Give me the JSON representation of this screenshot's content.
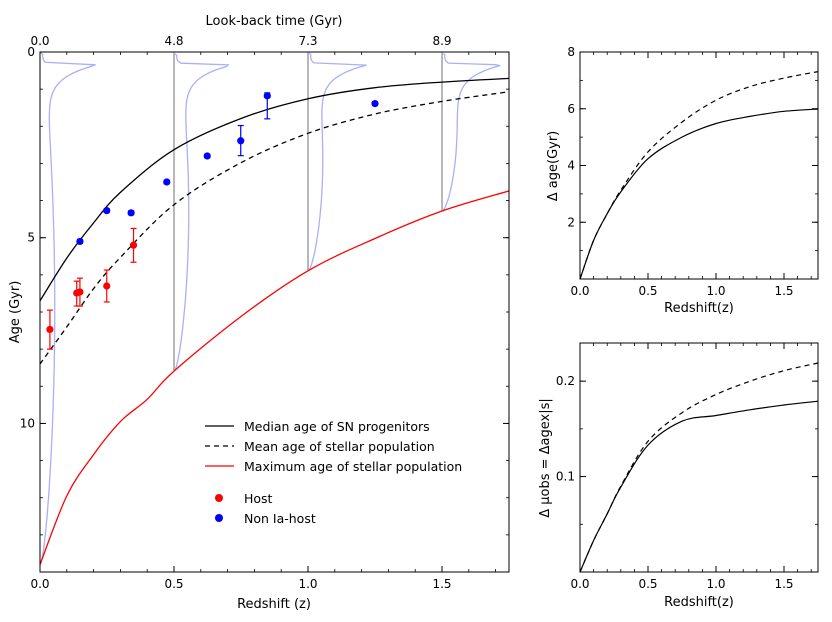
{
  "chart_data": [
    {
      "type": "scatter",
      "xlabel": "Redshift (z)",
      "ylabel": "Age (Gyr)",
      "top_xlabel": "Look-back time (Gyr)",
      "xlim": [
        0,
        1.75
      ],
      "ylim": [
        0,
        14
      ],
      "y_inverted": true,
      "x_ticks": [
        0.0,
        0.5,
        1.0,
        1.5
      ],
      "x_tick_labels": [
        "0.0",
        "0.5",
        "1.0",
        "1.5"
      ],
      "y_ticks": [
        0,
        5,
        10
      ],
      "y_tick_labels": [
        "0",
        "5",
        "10"
      ],
      "top_ticks_z": [
        0.0,
        0.5,
        1.0,
        1.5
      ],
      "top_tick_labels": [
        "0.0",
        "4.8",
        "7.3",
        "8.9"
      ],
      "grid": false,
      "legend_placement": "bottom-right",
      "lines": [
        {
          "name": "Median age of SN progenitors",
          "style": "solid",
          "color": "#000000",
          "x": [
            0,
            0.1,
            0.2,
            0.3,
            0.5,
            0.75,
            1.0,
            1.25,
            1.5,
            1.75
          ],
          "y": [
            6.7,
            5.55,
            4.6,
            3.78,
            2.63,
            1.79,
            1.26,
            0.96,
            0.81,
            0.71
          ]
        },
        {
          "name": "Mean age of stellar population",
          "style": "dashed",
          "color": "#000000",
          "x": [
            0,
            0.1,
            0.2,
            0.3,
            0.5,
            0.75,
            1.0,
            1.25,
            1.5,
            1.75
          ],
          "y": [
            8.4,
            7.4,
            6.37,
            5.53,
            4.11,
            2.98,
            2.19,
            1.67,
            1.33,
            1.07
          ]
        },
        {
          "name": "Maximum age of stellar population",
          "style": "solid",
          "color": "#ff0000",
          "x": [
            0,
            0.1,
            0.2,
            0.3,
            0.4,
            0.5,
            0.75,
            1.0,
            1.25,
            1.5,
            1.75
          ],
          "y": [
            13.8,
            11.95,
            10.84,
            9.95,
            9.35,
            8.59,
            7.12,
            5.89,
            5.02,
            4.28,
            3.74
          ]
        }
      ],
      "series": [
        {
          "name": "Host",
          "color": "#ff0000",
          "points": [
            {
              "x": 0.037,
              "y": 7.47,
              "ylo": 6.95,
              "yhi": 8.0
            },
            {
              "x": 0.137,
              "y": 6.49,
              "ylo": 6.17,
              "yhi": 6.84
            },
            {
              "x": 0.149,
              "y": 6.46,
              "ylo": 6.09,
              "yhi": 6.84
            },
            {
              "x": 0.249,
              "y": 6.3,
              "ylo": 5.87,
              "yhi": 6.73
            },
            {
              "x": 0.349,
              "y": 5.2,
              "ylo": 4.75,
              "yhi": 5.66
            }
          ]
        },
        {
          "name": "Non Ia-host",
          "color": "#0000ff",
          "points": [
            {
              "x": 0.149,
              "y": 5.1,
              "ylo": 5.05,
              "yhi": 5.15
            },
            {
              "x": 0.249,
              "y": 4.27,
              "ylo": 4.22,
              "yhi": 4.32
            },
            {
              "x": 0.34,
              "y": 4.33,
              "ylo": 4.28,
              "yhi": 4.38
            },
            {
              "x": 0.473,
              "y": 3.5,
              "ylo": 3.45,
              "yhi": 3.55
            },
            {
              "x": 0.624,
              "y": 2.8,
              "ylo": 2.75,
              "yhi": 2.85
            },
            {
              "x": 0.749,
              "y": 2.39,
              "ylo": 1.98,
              "yhi": 2.79
            },
            {
              "x": 0.848,
              "y": 1.18,
              "ylo": 1.1,
              "yhi": 1.8
            },
            {
              "x": 1.25,
              "y": 1.39,
              "ylo": 1.34,
              "yhi": 1.44
            }
          ]
        }
      ],
      "age_distributions": [
        {
          "z": 0.0,
          "max_age": 13.8
        },
        {
          "z": 0.5,
          "max_age": 8.59
        },
        {
          "z": 1.0,
          "max_age": 5.89
        },
        {
          "z": 1.5,
          "max_age": 4.28
        }
      ],
      "distribution_color": "#aab0f5",
      "marker_line_color": "#888888"
    },
    {
      "type": "line",
      "xlabel": "Redshift(z)",
      "ylabel": "Δ age(Gyr)",
      "xlim": [
        0,
        1.75
      ],
      "ylim": [
        0,
        8
      ],
      "x_ticks": [
        0.0,
        0.5,
        1.0,
        1.5
      ],
      "x_tick_labels": [
        "0.0",
        "0.5",
        "1.0",
        "1.5"
      ],
      "y_ticks": [
        2,
        4,
        6,
        8
      ],
      "y_tick_labels": [
        "2",
        "4",
        "6",
        "8"
      ],
      "grid": false,
      "lines": [
        {
          "style": "solid",
          "color": "#000000",
          "x": [
            0,
            0.1,
            0.2,
            0.3,
            0.5,
            0.75,
            1.0,
            1.25,
            1.5,
            1.75
          ],
          "y": [
            0,
            1.36,
            2.3,
            3.07,
            4.24,
            5.0,
            5.48,
            5.73,
            5.91,
            5.99
          ]
        },
        {
          "style": "dashed",
          "color": "#000000",
          "x": [
            0,
            0.1,
            0.2,
            0.3,
            0.5,
            0.75,
            1.0,
            1.25,
            1.5,
            1.75
          ],
          "y": [
            0,
            1.36,
            2.3,
            3.13,
            4.48,
            5.53,
            6.3,
            6.78,
            7.08,
            7.31
          ]
        }
      ]
    },
    {
      "type": "line",
      "xlabel": "Redshift(z)",
      "ylabel": "Δ μobs = Δagex|s|",
      "xlim": [
        0,
        1.75
      ],
      "ylim": [
        0,
        0.24
      ],
      "x_ticks": [
        0.0,
        0.5,
        1.0,
        1.5
      ],
      "x_tick_labels": [
        "0.0",
        "0.5",
        "1.0",
        "1.5"
      ],
      "y_ticks": [
        0.1,
        0.2
      ],
      "y_tick_labels": [
        "0.1",
        "0.2"
      ],
      "grid": false,
      "lines": [
        {
          "style": "solid",
          "color": "#000000",
          "x": [
            0,
            0.1,
            0.2,
            0.3,
            0.5,
            0.75,
            1.0,
            1.25,
            1.5,
            1.75
          ],
          "y": [
            0,
            0.033,
            0.061,
            0.089,
            0.133,
            0.158,
            0.164,
            0.17,
            0.175,
            0.179
          ]
        },
        {
          "style": "dashed",
          "color": "#000000",
          "x": [
            0,
            0.1,
            0.2,
            0.3,
            0.5,
            0.75,
            1.0,
            1.25,
            1.5,
            1.75
          ],
          "y": [
            0,
            0.033,
            0.061,
            0.09,
            0.137,
            0.167,
            0.186,
            0.2,
            0.211,
            0.219
          ]
        }
      ]
    }
  ]
}
